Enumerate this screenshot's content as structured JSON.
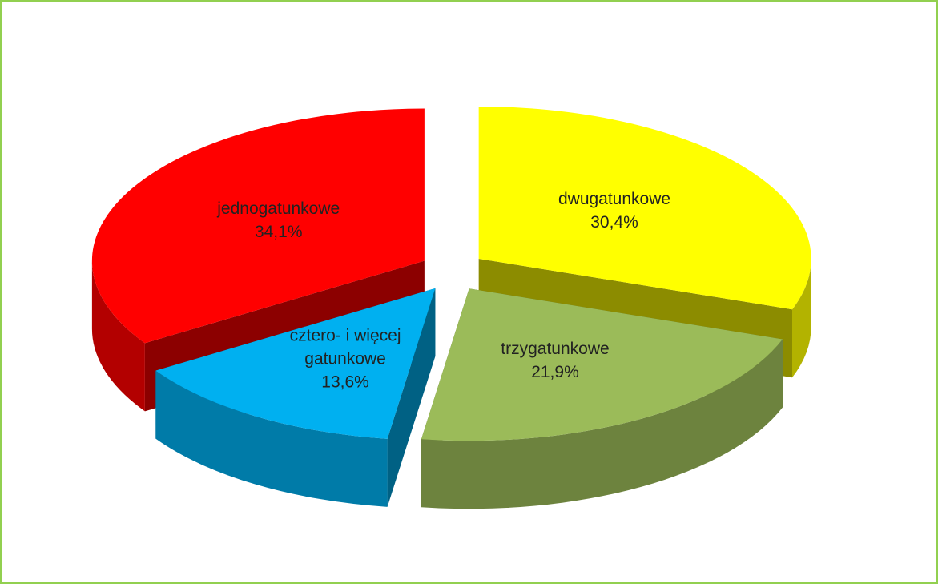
{
  "chart_data": {
    "type": "pie",
    "categories": [
      "dwugatunkowe",
      "trzygatunkowe",
      "cztero- i więcej gatunkowe",
      "jednogatunkowe"
    ],
    "values": [
      30.4,
      21.9,
      13.6,
      34.1
    ],
    "value_labels": [
      "30,4%",
      "21,9%",
      "13,6%",
      "34,1%"
    ],
    "colors": [
      "#ffff00",
      "#9bbb59",
      "#00b0f0",
      "#ff0000"
    ]
  }
}
